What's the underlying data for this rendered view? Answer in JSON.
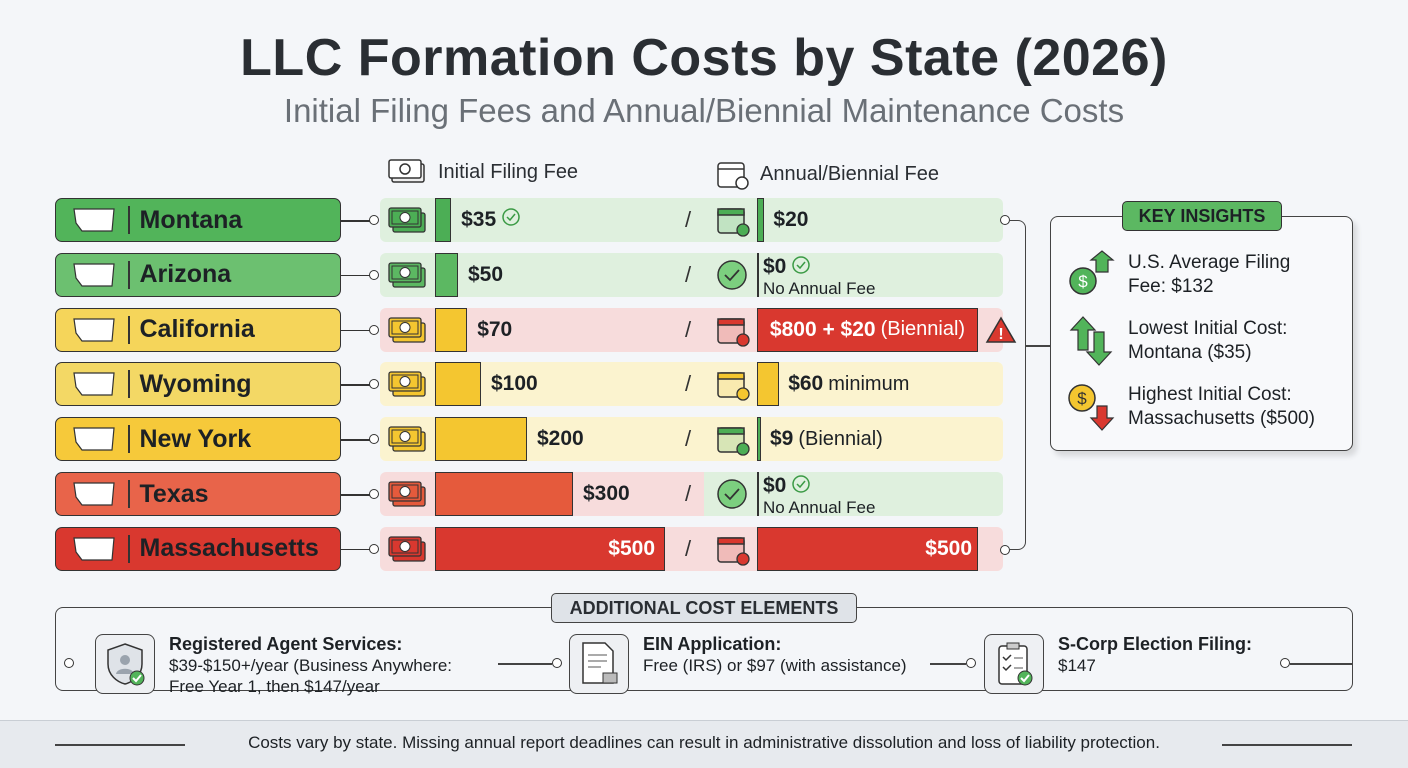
{
  "title": "LLC Formation Costs by State (2026)",
  "subtitle": "Initial Filing Fees and Annual/Biennial Maintenance Costs",
  "legend": {
    "initial": "Initial Filing Fee",
    "annual": "Annual/Biennial Fee"
  },
  "colors": {
    "green": "#52b45a",
    "light_green": "#6cc070",
    "yellow": "#f5d55a",
    "gold": "#f6c93a",
    "orange": "#e8644a",
    "red": "#d9382f"
  },
  "chart_data": {
    "type": "bar",
    "categories": [
      "Montana",
      "Arizona",
      "California",
      "Wyoming",
      "New York",
      "Texas",
      "Massachusetts"
    ],
    "series": [
      {
        "name": "Initial Filing Fee",
        "values": [
          35,
          50,
          70,
          100,
          200,
          300,
          500
        ],
        "labels": [
          "$35",
          "$50",
          "$70",
          "$100",
          "$200",
          "$300",
          "$500"
        ]
      },
      {
        "name": "Annual/Biennial Fee",
        "values": [
          20,
          0,
          820,
          60,
          9,
          0,
          500
        ],
        "labels": [
          "$20",
          "$0",
          "$800 + $20",
          "$60",
          "$9",
          "$0",
          "$500"
        ],
        "notes": [
          "",
          "No Annual Fee",
          "(Biennial)",
          "minimum",
          "(Biennial)",
          "No Annual Fee",
          ""
        ]
      }
    ]
  },
  "rows": [
    {
      "state": "Montana",
      "pill": "#52b45a",
      "bar": "#4cae55",
      "bg": "#dff0de",
      "bg2": "#dff0de",
      "check": true,
      "acolor": "#4cae55",
      "aicon": "calendar"
    },
    {
      "state": "Arizona",
      "pill": "#6cc070",
      "bar": "#5cb862",
      "bg": "#dff0de",
      "bg2": "#dff0de",
      "check": false,
      "acolor": "#4cae55",
      "aicon": "check"
    },
    {
      "state": "California",
      "pill": "#f5d55a",
      "bar": "#f4c630",
      "bg": "#f7dcdc",
      "bg2": "#f7dcdc",
      "check": false,
      "acolor": "#d9382f",
      "aicon": "calendar-red",
      "warn": true
    },
    {
      "state": "Wyoming",
      "pill": "#f3d865",
      "bar": "#f4c630",
      "bg": "#fbf3cf",
      "bg2": "#fbf3cf",
      "check": false,
      "acolor": "#f4c630",
      "aicon": "calendar-yellow"
    },
    {
      "state": "New York",
      "pill": "#f6c93a",
      "bar": "#f4c630",
      "bg": "#fbf3cf",
      "bg2": "#fbf3cf",
      "check": false,
      "acolor": "#4cae55",
      "aicon": "calendar"
    },
    {
      "state": "Texas",
      "pill": "#e8644a",
      "bar": "#e55a3c",
      "bg": "#f7dcdc",
      "bg2": "#dff0de",
      "check": false,
      "acolor": "#4cae55",
      "aicon": "check"
    },
    {
      "state": "Massachusetts",
      "pill": "#d9382f",
      "bar": "#d9382f",
      "bg": "#f7dcdc",
      "bg2": "#f7dcdc",
      "check": false,
      "acolor": "#d9382f",
      "aicon": "calendar-red"
    }
  ],
  "insights": {
    "heading": "KEY INSIGHTS",
    "items": [
      {
        "line1": "U.S. Average Filing",
        "line2": "Fee: $132",
        "icon": "dollar-up-icon"
      },
      {
        "line1": "Lowest Initial Cost:",
        "line2": "Montana ($35)",
        "icon": "up-down-arrows-icon"
      },
      {
        "line1": "Highest Initial Cost:",
        "line2": "Massachusetts ($500)",
        "icon": "dollar-down-icon"
      }
    ]
  },
  "additional": {
    "heading": "ADDITIONAL COST ELEMENTS",
    "items": [
      {
        "title": "Registered Agent Services:",
        "line1": "$39-$150+/year (Business Anywhere:",
        "line2": "Free Year 1, then $147/year",
        "icon": "shield-user-icon"
      },
      {
        "title": "EIN Application:",
        "line1": "Free (IRS) or $97 (with assistance)",
        "line2": "",
        "icon": "document-stamp-icon"
      },
      {
        "title": "S-Corp Election Filing:",
        "line1": "$147",
        "line2": "",
        "icon": "clipboard-check-icon"
      }
    ]
  },
  "footer": "Costs vary by state. Missing annual report deadlines can result in administrative dissolution and loss of liability protection."
}
